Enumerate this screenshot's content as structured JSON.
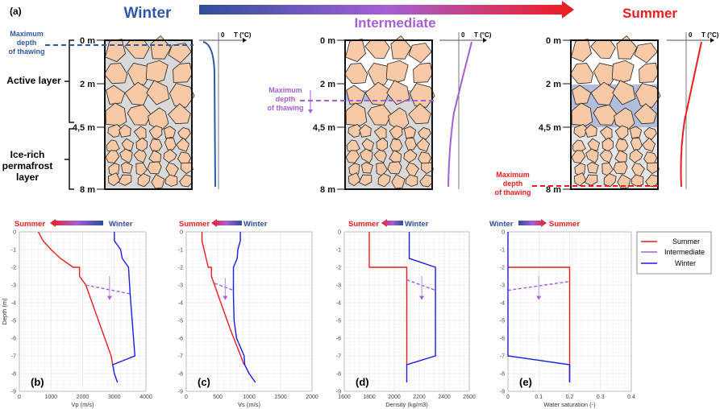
{
  "diagram": {
    "panel_label": "(a)",
    "seasons": {
      "winter": "Winter",
      "intermediate": "Intermediate",
      "summer": "Summer"
    },
    "colors": {
      "winter": "#2e59a8",
      "intermediate": "#a45fd6",
      "summer": "#ee1c1c",
      "rock": "#f7c9a6",
      "ice": "#d9d9d9",
      "water": "#8fa8dc"
    },
    "depth_labels": [
      "0 m",
      "2 m",
      "4,5 m",
      "8 m"
    ],
    "active_layer": "Active layer",
    "permafrost": [
      "Ice-rich",
      "permafrost",
      "layer"
    ],
    "thaw_label": [
      "Maximum",
      "depth",
      "of thawing"
    ],
    "temp_axis": {
      "zero": "0",
      "label": "T (°C)"
    }
  },
  "legend": {
    "entries": [
      "Summer",
      "Intermediate",
      "Winter"
    ]
  },
  "chart_data": [
    {
      "type": "line",
      "panel": "(b)",
      "xlabel": "Vp (m/s)",
      "ylabel": "Depth (m)",
      "xlim": [
        0,
        4000
      ],
      "ylim": [
        -9,
        0
      ],
      "xticks": [
        0,
        1000,
        2000,
        3000,
        4000
      ],
      "yticks": [
        0,
        -1,
        -2,
        -3,
        -4,
        -5,
        -6,
        -7,
        -8,
        -9
      ],
      "grid": true,
      "direction": {
        "left": "Summer",
        "right": "Winter"
      },
      "series": [
        {
          "name": "Summer",
          "color": "#ee1c1c",
          "points": [
            [
              600,
              0
            ],
            [
              750,
              -0.5
            ],
            [
              1000,
              -1
            ],
            [
              1300,
              -1.5
            ],
            [
              1700,
              -2
            ],
            [
              1900,
              -2
            ],
            [
              1900,
              -2.5
            ],
            [
              2100,
              -3
            ],
            [
              2900,
              -7
            ],
            [
              2950,
              -7.5
            ]
          ]
        },
        {
          "name": "Intermediate",
          "color": "#a45fd6",
          "dashed": true,
          "points": [
            [
              2100,
              -3
            ],
            [
              3500,
              -3.5
            ]
          ]
        },
        {
          "name": "Winter",
          "color": "#1a1aee",
          "points": [
            [
              3000,
              0
            ],
            [
              3000,
              -0.5
            ],
            [
              3200,
              -1
            ],
            [
              3250,
              -1.5
            ],
            [
              3450,
              -2
            ],
            [
              3500,
              -3.5
            ],
            [
              3650,
              -7
            ],
            [
              2950,
              -7.5
            ],
            [
              3000,
              -8
            ],
            [
              3100,
              -8.5
            ]
          ]
        }
      ],
      "arrow": {
        "x": 2850,
        "from": -2.5,
        "to": -3.8
      }
    },
    {
      "type": "line",
      "panel": "(c)",
      "xlabel": "Vs (m/s)",
      "xlim": [
        0,
        2000
      ],
      "ylim": [
        -9,
        0
      ],
      "xticks": [
        0,
        500,
        1000,
        1500,
        2000
      ],
      "yticks": [
        0,
        -1,
        -2,
        -3,
        -4,
        -5,
        -6,
        -7,
        -8,
        -9
      ],
      "grid": true,
      "direction": {
        "left": "Summer",
        "right": "Winter"
      },
      "series": [
        {
          "name": "Summer",
          "color": "#ee1c1c",
          "points": [
            [
              250,
              0
            ],
            [
              250,
              -0.5
            ],
            [
              350,
              -2
            ],
            [
              400,
              -2
            ],
            [
              400,
              -2.5
            ],
            [
              450,
              -3
            ],
            [
              600,
              -4.5
            ],
            [
              700,
              -5.5
            ],
            [
              920,
              -7.5
            ]
          ]
        },
        {
          "name": "Intermediate",
          "color": "#a45fd6",
          "dashed": true,
          "points": [
            [
              450,
              -2.9
            ],
            [
              750,
              -3.3
            ]
          ]
        },
        {
          "name": "Winter",
          "color": "#1a1aee",
          "points": [
            [
              860,
              0
            ],
            [
              860,
              -0.5
            ],
            [
              820,
              -1
            ],
            [
              810,
              -1.5
            ],
            [
              750,
              -2
            ],
            [
              750,
              -3.5
            ],
            [
              760,
              -5
            ],
            [
              800,
              -6
            ],
            [
              920,
              -7
            ],
            [
              930,
              -7.5
            ],
            [
              1000,
              -8
            ],
            [
              1100,
              -8.5
            ]
          ]
        }
      ],
      "arrow": {
        "x": 620,
        "from": -2.6,
        "to": -3.8
      }
    },
    {
      "type": "line",
      "panel": "(d)",
      "xlabel": "Density (kg/m3)",
      "xlim": [
        1600,
        2600
      ],
      "ylim": [
        -9,
        0
      ],
      "xticks": [
        1600,
        1800,
        2000,
        2200,
        2400,
        2600
      ],
      "yticks": [
        0,
        -1,
        -2,
        -3,
        -4,
        -5,
        -6,
        -7,
        -8,
        -9
      ],
      "grid": true,
      "direction": {
        "left": "Summer",
        "right": "Winter"
      },
      "series": [
        {
          "name": "Summer",
          "color": "#ee1c1c",
          "points": [
            [
              1800,
              0
            ],
            [
              1800,
              -2
            ],
            [
              2100,
              -2
            ],
            [
              2100,
              -7.5
            ]
          ]
        },
        {
          "name": "Intermediate",
          "color": "#a45fd6",
          "dashed": true,
          "points": [
            [
              2100,
              -2.7
            ],
            [
              2330,
              -3.3
            ]
          ]
        },
        {
          "name": "Winter",
          "color": "#1a1aee",
          "points": [
            [
              2120,
              0
            ],
            [
              2120,
              -1.5
            ],
            [
              2330,
              -2
            ],
            [
              2330,
              -7
            ],
            [
              2100,
              -7.5
            ],
            [
              2100,
              -8.5
            ]
          ]
        }
      ],
      "arrow": {
        "x": 2220,
        "from": -2.5,
        "to": -3.8
      }
    },
    {
      "type": "line",
      "panel": "(e)",
      "xlabel": "Water saturation (-)",
      "xlim": [
        0,
        0.4
      ],
      "ylim": [
        -9,
        0
      ],
      "xticks": [
        0,
        0.1,
        0.2,
        0.3,
        0.4
      ],
      "yticks": [
        0,
        -1,
        -2,
        -3,
        -4,
        -5,
        -6,
        -7,
        -8,
        -9
      ],
      "grid": true,
      "direction": {
        "left": "Winter",
        "right": "Summer"
      },
      "series": [
        {
          "name": "Summer",
          "color": "#ee1c1c",
          "points": [
            [
              0,
              -2
            ],
            [
              0.2,
              -2
            ],
            [
              0.2,
              -8.5
            ]
          ]
        },
        {
          "name": "Intermediate",
          "color": "#a45fd6",
          "dashed": true,
          "points": [
            [
              0,
              -3.3
            ],
            [
              0.2,
              -2.8
            ]
          ]
        },
        {
          "name": "Winter",
          "color": "#1a1aee",
          "points": [
            [
              0,
              0
            ],
            [
              0,
              -7
            ],
            [
              0.2,
              -7.5
            ],
            [
              0.2,
              -8.5
            ]
          ]
        }
      ],
      "arrow": {
        "x": 0.1,
        "from": -2.5,
        "to": -3.8
      }
    }
  ]
}
